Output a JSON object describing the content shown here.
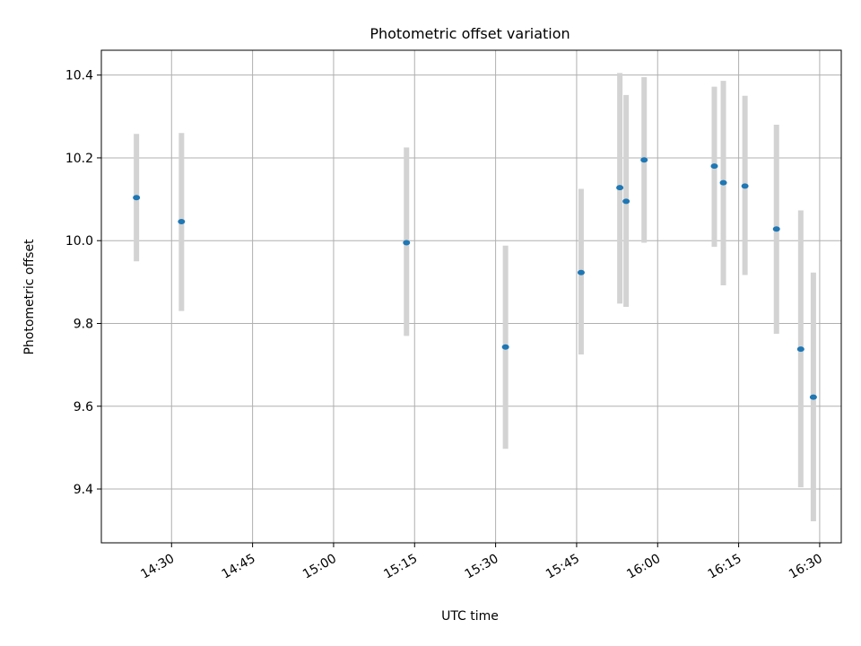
{
  "chart_data": {
    "type": "scatter",
    "title": "Photometric offset variation",
    "xlabel": "UTC time",
    "ylabel": "Photometric offset",
    "x_ticks": [
      "14:30",
      "14:45",
      "15:00",
      "15:15",
      "15:30",
      "15:45",
      "16:00",
      "16:15",
      "16:30"
    ],
    "y_ticks": [
      "9.4",
      "9.6",
      "9.8",
      "10.0",
      "10.2",
      "10.4"
    ],
    "xlim": [
      "14:17",
      "16:34"
    ],
    "ylim": [
      9.27,
      10.46
    ],
    "grid": true,
    "marker_color": "#1f77b4",
    "errorbar_color": "#d3d3d3",
    "points": [
      {
        "t": "14:23:30",
        "y": 10.104,
        "lo": 9.95,
        "hi": 10.258
      },
      {
        "t": "14:31:50",
        "y": 10.046,
        "lo": 9.83,
        "hi": 10.26
      },
      {
        "t": "15:13:30",
        "y": 9.995,
        "lo": 9.77,
        "hi": 10.225
      },
      {
        "t": "15:31:50",
        "y": 9.743,
        "lo": 9.497,
        "hi": 9.988
      },
      {
        "t": "15:45:50",
        "y": 9.923,
        "lo": 9.725,
        "hi": 10.125
      },
      {
        "t": "15:53:00",
        "y": 10.128,
        "lo": 9.848,
        "hi": 10.405
      },
      {
        "t": "15:54:10",
        "y": 10.095,
        "lo": 9.84,
        "hi": 10.352
      },
      {
        "t": "15:57:30",
        "y": 10.195,
        "lo": 9.995,
        "hi": 10.395
      },
      {
        "t": "16:10:30",
        "y": 10.18,
        "lo": 9.985,
        "hi": 10.372
      },
      {
        "t": "16:12:10",
        "y": 10.14,
        "lo": 9.892,
        "hi": 10.386
      },
      {
        "t": "16:16:10",
        "y": 10.132,
        "lo": 9.917,
        "hi": 10.35
      },
      {
        "t": "16:22:00",
        "y": 10.028,
        "lo": 9.775,
        "hi": 10.28
      },
      {
        "t": "16:26:30",
        "y": 9.738,
        "lo": 9.404,
        "hi": 10.073
      },
      {
        "t": "16:28:50",
        "y": 9.622,
        "lo": 9.322,
        "hi": 9.923
      }
    ]
  }
}
